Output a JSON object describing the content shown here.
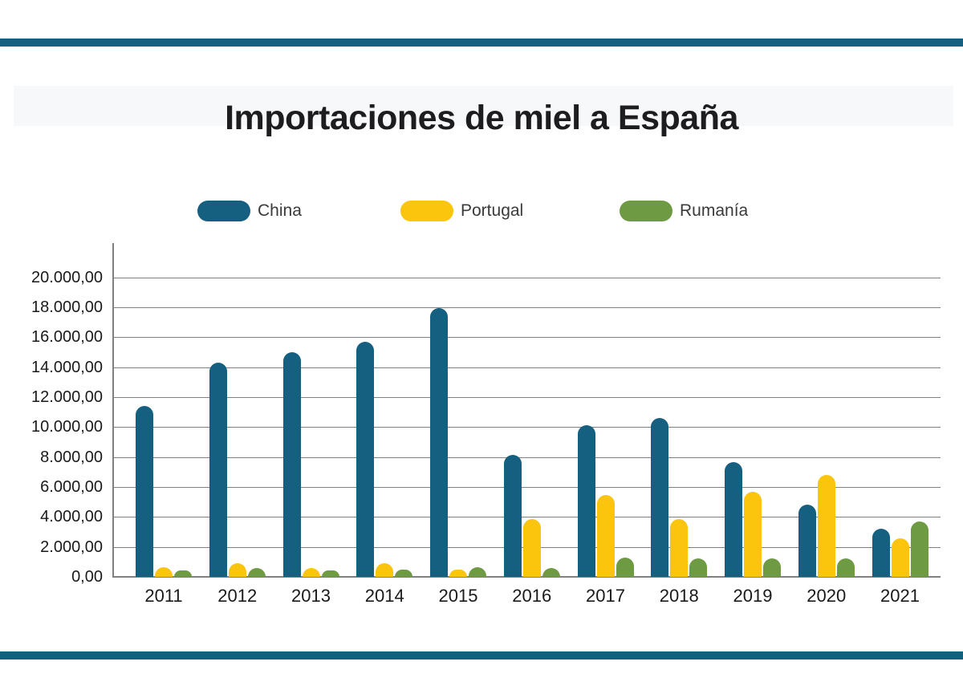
{
  "title": "Importaciones de miel a España",
  "colors": {
    "accent_teal": "#156080",
    "gold": "#FBC40D",
    "olive": "#6F9A44",
    "gridline": "#808080",
    "title_band": "#F7F8F9",
    "divider_band": "#156080",
    "text": "#1A1A1A"
  },
  "legend": [
    {
      "label": "China",
      "color": "#156080"
    },
    {
      "label": "Portugal",
      "color": "#FBC40D"
    },
    {
      "label": "Rumanía",
      "color": "#6F9A44"
    }
  ],
  "chart_data": {
    "type": "bar",
    "title": "Importaciones de miel a España",
    "categories": [
      "2011",
      "2012",
      "2013",
      "2014",
      "2015",
      "2016",
      "2017",
      "2018",
      "2019",
      "2020",
      "2021"
    ],
    "series": [
      {
        "name": "China",
        "color": "#156080",
        "values": [
          11200,
          14100,
          14800,
          15500,
          17700,
          7900,
          9900,
          10400,
          7450,
          4600,
          3000
        ]
      },
      {
        "name": "Portugal",
        "color": "#FBC40D",
        "values": [
          450,
          700,
          400,
          700,
          250,
          3650,
          5250,
          3650,
          5450,
          6600,
          2350
        ]
      },
      {
        "name": "Rumanía",
        "color": "#6F9A44",
        "values": [
          200,
          350,
          200,
          250,
          450,
          400,
          1050,
          1000,
          1000,
          1000,
          3500
        ]
      }
    ],
    "xlabel": "",
    "ylabel": "",
    "ylim": [
      0,
      20000
    ],
    "ytick_step": 2000,
    "ytick_labels": [
      "0,00",
      "2.000,00",
      "4.000,00",
      "6.000,00",
      "8.000,00",
      "10.000,00",
      "12.000,00",
      "14.000,00",
      "16.000,00",
      "18.000,00",
      "20.000,00"
    ],
    "grid": true,
    "legend_position": "top"
  }
}
